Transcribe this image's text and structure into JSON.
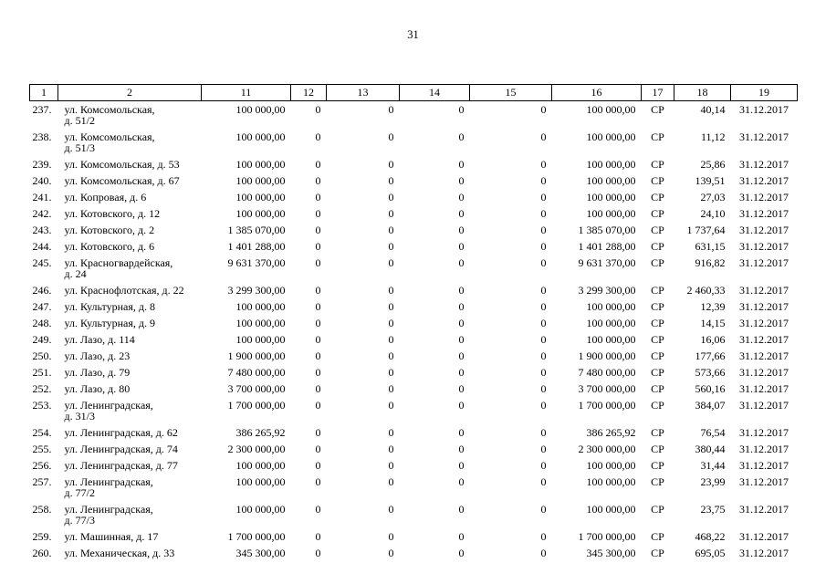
{
  "page": {
    "number": "31"
  },
  "table": {
    "headers": [
      "1",
      "2",
      "11",
      "12",
      "13",
      "14",
      "15",
      "16",
      "17",
      "18",
      "19"
    ],
    "rows": [
      {
        "num": "237.",
        "address": "ул. Комсомольская,\nд. 51/2",
        "c11": "100 000,00",
        "c12": "0",
        "c13": "0",
        "c14": "0",
        "c15": "0",
        "c16": "100 000,00",
        "c17": "СР",
        "c18": "40,14",
        "c19": "31.12.2017"
      },
      {
        "num": "238.",
        "address": "ул. Комсомольская,\nд. 51/3",
        "c11": "100 000,00",
        "c12": "0",
        "c13": "0",
        "c14": "0",
        "c15": "0",
        "c16": "100 000,00",
        "c17": "СР",
        "c18": "11,12",
        "c19": "31.12.2017"
      },
      {
        "num": "239.",
        "address": "ул. Комсомольская, д. 53",
        "c11": "100 000,00",
        "c12": "0",
        "c13": "0",
        "c14": "0",
        "c15": "0",
        "c16": "100 000,00",
        "c17": "СР",
        "c18": "25,86",
        "c19": "31.12.2017"
      },
      {
        "num": "240.",
        "address": "ул. Комсомольская, д. 67",
        "c11": "100 000,00",
        "c12": "0",
        "c13": "0",
        "c14": "0",
        "c15": "0",
        "c16": "100 000,00",
        "c17": "СР",
        "c18": "139,51",
        "c19": "31.12.2017"
      },
      {
        "num": "241.",
        "address": "ул. Копровая, д. 6",
        "c11": "100 000,00",
        "c12": "0",
        "c13": "0",
        "c14": "0",
        "c15": "0",
        "c16": "100 000,00",
        "c17": "СР",
        "c18": "27,03",
        "c19": "31.12.2017"
      },
      {
        "num": "242.",
        "address": "ул. Котовского, д. 12",
        "c11": "100 000,00",
        "c12": "0",
        "c13": "0",
        "c14": "0",
        "c15": "0",
        "c16": "100 000,00",
        "c17": "СР",
        "c18": "24,10",
        "c19": "31.12.2017"
      },
      {
        "num": "243.",
        "address": "ул. Котовского, д. 2",
        "c11": "1 385 070,00",
        "c12": "0",
        "c13": "0",
        "c14": "0",
        "c15": "0",
        "c16": "1 385 070,00",
        "c17": "СР",
        "c18": "1 737,64",
        "c19": "31.12.2017"
      },
      {
        "num": "244.",
        "address": "ул. Котовского, д. 6",
        "c11": "1 401 288,00",
        "c12": "0",
        "c13": "0",
        "c14": "0",
        "c15": "0",
        "c16": "1 401 288,00",
        "c17": "СР",
        "c18": "631,15",
        "c19": "31.12.2017"
      },
      {
        "num": "245.",
        "address": "ул. Красногвардейская,\nд. 24",
        "c11": "9 631 370,00",
        "c12": "0",
        "c13": "0",
        "c14": "0",
        "c15": "0",
        "c16": "9 631 370,00",
        "c17": "СР",
        "c18": "916,82",
        "c19": "31.12.2017"
      },
      {
        "num": "246.",
        "address": "ул. Краснофлотская, д. 22",
        "c11": "3 299 300,00",
        "c12": "0",
        "c13": "0",
        "c14": "0",
        "c15": "0",
        "c16": "3 299 300,00",
        "c17": "СР",
        "c18": "2 460,33",
        "c19": "31.12.2017"
      },
      {
        "num": "247.",
        "address": "ул. Культурная, д. 8",
        "c11": "100 000,00",
        "c12": "0",
        "c13": "0",
        "c14": "0",
        "c15": "0",
        "c16": "100 000,00",
        "c17": "СР",
        "c18": "12,39",
        "c19": "31.12.2017"
      },
      {
        "num": "248.",
        "address": "ул. Культурная, д. 9",
        "c11": "100 000,00",
        "c12": "0",
        "c13": "0",
        "c14": "0",
        "c15": "0",
        "c16": "100 000,00",
        "c17": "СР",
        "c18": "14,15",
        "c19": "31.12.2017"
      },
      {
        "num": "249.",
        "address": "ул. Лазо, д. 114",
        "c11": "100 000,00",
        "c12": "0",
        "c13": "0",
        "c14": "0",
        "c15": "0",
        "c16": "100 000,00",
        "c17": "СР",
        "c18": "16,06",
        "c19": "31.12.2017"
      },
      {
        "num": "250.",
        "address": "ул. Лазо, д. 23",
        "c11": "1 900 000,00",
        "c12": "0",
        "c13": "0",
        "c14": "0",
        "c15": "0",
        "c16": "1 900 000,00",
        "c17": "СР",
        "c18": "177,66",
        "c19": "31.12.2017"
      },
      {
        "num": "251.",
        "address": "ул. Лазо, д. 79",
        "c11": "7 480 000,00",
        "c12": "0",
        "c13": "0",
        "c14": "0",
        "c15": "0",
        "c16": "7 480 000,00",
        "c17": "СР",
        "c18": "573,66",
        "c19": "31.12.2017"
      },
      {
        "num": "252.",
        "address": "ул. Лазо, д. 80",
        "c11": "3 700 000,00",
        "c12": "0",
        "c13": "0",
        "c14": "0",
        "c15": "0",
        "c16": "3 700 000,00",
        "c17": "СР",
        "c18": "560,16",
        "c19": "31.12.2017"
      },
      {
        "num": "253.",
        "address": "ул. Ленинградская,\nд. 31/3",
        "c11": "1 700 000,00",
        "c12": "0",
        "c13": "0",
        "c14": "0",
        "c15": "0",
        "c16": "1 700 000,00",
        "c17": "СР",
        "c18": "384,07",
        "c19": "31.12.2017"
      },
      {
        "num": "254.",
        "address": "ул. Ленинградская, д. 62",
        "c11": "386 265,92",
        "c12": "0",
        "c13": "0",
        "c14": "0",
        "c15": "0",
        "c16": "386 265,92",
        "c17": "СР",
        "c18": "76,54",
        "c19": "31.12.2017"
      },
      {
        "num": "255.",
        "address": "ул. Ленинградская, д. 74",
        "c11": "2 300 000,00",
        "c12": "0",
        "c13": "0",
        "c14": "0",
        "c15": "0",
        "c16": "2 300 000,00",
        "c17": "СР",
        "c18": "380,44",
        "c19": "31.12.2017"
      },
      {
        "num": "256.",
        "address": "ул. Ленинградская, д. 77",
        "c11": "100 000,00",
        "c12": "0",
        "c13": "0",
        "c14": "0",
        "c15": "0",
        "c16": "100 000,00",
        "c17": "СР",
        "c18": "31,44",
        "c19": "31.12.2017"
      },
      {
        "num": "257.",
        "address": "ул. Ленинградская,\nд. 77/2",
        "c11": "100 000,00",
        "c12": "0",
        "c13": "0",
        "c14": "0",
        "c15": "0",
        "c16": "100 000,00",
        "c17": "СР",
        "c18": "23,99",
        "c19": "31.12.2017"
      },
      {
        "num": "258.",
        "address": "ул. Ленинградская,\nд. 77/3",
        "c11": "100 000,00",
        "c12": "0",
        "c13": "0",
        "c14": "0",
        "c15": "0",
        "c16": "100 000,00",
        "c17": "СР",
        "c18": "23,75",
        "c19": "31.12.2017"
      },
      {
        "num": "259.",
        "address": "ул. Машинная, д. 17",
        "c11": "1 700 000,00",
        "c12": "0",
        "c13": "0",
        "c14": "0",
        "c15": "0",
        "c16": "1 700 000,00",
        "c17": "СР",
        "c18": "468,22",
        "c19": "31.12.2017"
      },
      {
        "num": "260.",
        "address": "ул. Механическая, д. 33",
        "c11": "345 300,00",
        "c12": "0",
        "c13": "0",
        "c14": "0",
        "c15": "0",
        "c16": "345 300,00",
        "c17": "СР",
        "c18": "695,05",
        "c19": "31.12.2017"
      }
    ]
  }
}
